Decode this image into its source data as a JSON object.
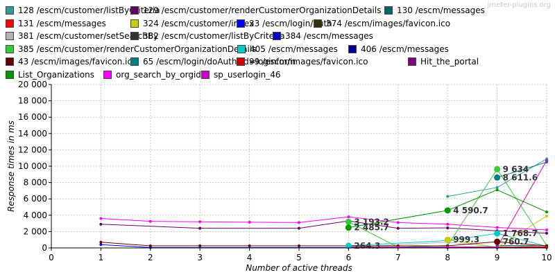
{
  "watermark": "jmeter-plugins.org",
  "chart_data": {
    "type": "line",
    "xlabel": "Number of active threads",
    "ylabel": "Response times in ms",
    "xlim": [
      0,
      10
    ],
    "ylim": [
      0,
      20000
    ],
    "x_ticks": [
      0,
      1,
      2,
      3,
      4,
      5,
      6,
      7,
      8,
      9,
      10
    ],
    "y_ticks": [
      0,
      2000,
      4000,
      6000,
      8000,
      10000,
      12000,
      14000,
      16000,
      18000,
      20000
    ],
    "x_tick_labels": [
      "0",
      "1",
      "2",
      "3",
      "4",
      "5",
      "6",
      "7",
      "8",
      "9",
      "10"
    ],
    "y_tick_labels": [
      "0",
      "2 000",
      "4 000",
      "6 000",
      "8 000",
      "10 000",
      "12 000",
      "14 000",
      "16 000",
      "18 000",
      "20 000"
    ],
    "grid": true,
    "legend_position": "top",
    "series": [
      {
        "name": "128 /escm/customer/listByCriteria",
        "color": "#339999",
        "points": [
          [
            8,
            6300
          ],
          [
            9,
            7400
          ],
          [
            10,
            10900
          ]
        ]
      },
      {
        "name": "129 /escm/customer/renderCustomerOrganizationDetails",
        "color": "#660066",
        "points": [
          [
            1,
            2900
          ],
          [
            3,
            2400
          ],
          [
            5,
            2400
          ],
          [
            6,
            3300
          ],
          [
            7,
            2400
          ],
          [
            8,
            2450
          ],
          [
            9,
            2100
          ],
          [
            10,
            1800
          ]
        ]
      },
      {
        "name": "130 /escm/messages",
        "color": "#006666",
        "points": [
          [
            9,
            300
          ],
          [
            10,
            300
          ]
        ]
      },
      {
        "name": "131 /escm/messages",
        "color": "#ff0000",
        "points": [
          [
            9,
            150
          ],
          [
            10,
            150
          ]
        ]
      },
      {
        "name": "324 /escm/customer/index",
        "color": "#cccc00",
        "points": [
          [
            8,
            999.3
          ],
          [
            9,
            100
          ],
          [
            10,
            3900
          ]
        ]
      },
      {
        "name": "33 /escm/login/auth",
        "color": "#0000ff",
        "points": [
          [
            1,
            400
          ],
          [
            2,
            50
          ],
          [
            6,
            50
          ],
          [
            8,
            50
          ],
          [
            9,
            50
          ],
          [
            10,
            50
          ]
        ]
      },
      {
        "name": "374 /escm/images/favicon.ico",
        "color": "#333300",
        "points": [
          [
            6,
            100
          ],
          [
            8,
            100
          ],
          [
            9,
            100
          ]
        ]
      },
      {
        "name": "381 /escm/customer/setSearchBy",
        "color": "#b3b3b3",
        "points": [
          [
            6,
            100
          ],
          [
            8,
            700
          ],
          [
            9,
            100
          ],
          [
            10,
            300
          ]
        ]
      },
      {
        "name": "382 /escm/customer/listByCriteria",
        "color": "#333333",
        "points": [
          [
            6,
            100
          ],
          [
            7,
            100
          ],
          [
            8,
            100
          ],
          [
            9,
            100
          ]
        ]
      },
      {
        "name": "384 /escm/messages",
        "color": "#0000cc",
        "points": [
          [
            6,
            50
          ],
          [
            8,
            50
          ],
          [
            9,
            50
          ]
        ]
      },
      {
        "name": "385 /escm/customer/renderCustomerOrganizationDetails",
        "color": "#33cc33",
        "points": [
          [
            6,
            3193.2
          ],
          [
            7,
            100
          ],
          [
            8,
            300
          ],
          [
            9,
            9634
          ],
          [
            10,
            300
          ]
        ]
      },
      {
        "name": "405 /escm/messages",
        "color": "#00cccc",
        "points": [
          [
            6,
            264.3
          ],
          [
            8,
            900
          ],
          [
            9,
            1768.7
          ],
          [
            10,
            200
          ]
        ]
      },
      {
        "name": "406 /escm/messages",
        "color": "#000099",
        "points": [
          [
            6,
            50
          ],
          [
            8,
            50
          ],
          [
            9,
            50
          ]
        ]
      },
      {
        "name": "43 /escm/images/favicon.ico",
        "color": "#660000",
        "points": [
          [
            1,
            700
          ],
          [
            2,
            250
          ],
          [
            3,
            250
          ],
          [
            4,
            250
          ],
          [
            5,
            250
          ],
          [
            6,
            250
          ],
          [
            7,
            250
          ],
          [
            8,
            250
          ],
          [
            9,
            760.7
          ],
          [
            10,
            250
          ]
        ]
      },
      {
        "name": "65 /escm/login/doAuth?id=loginform",
        "color": "#008080",
        "points": [
          [
            9,
            8611.6
          ],
          [
            10,
            10500
          ]
        ]
      },
      {
        "name": "99 /escm/images/favicon.ico",
        "color": "#cc0000",
        "points": [
          [
            8,
            100
          ],
          [
            9,
            100
          ],
          [
            10,
            100
          ]
        ]
      },
      {
        "name": "Hit_the_portal",
        "color": "#800080",
        "points": [
          [
            8,
            100
          ],
          [
            9,
            100
          ]
        ]
      },
      {
        "name": "List_Organizations",
        "color": "#009900",
        "points": [
          [
            6,
            2485.7
          ],
          [
            8,
            4590.7
          ],
          [
            9,
            7100
          ],
          [
            10,
            4400
          ]
        ]
      },
      {
        "name": "org_search_by_orgid",
        "color": "#ff00ff",
        "points": [
          [
            1,
            3600
          ],
          [
            2,
            3250
          ],
          [
            3,
            3200
          ],
          [
            4,
            3150
          ],
          [
            5,
            3100
          ],
          [
            6,
            3800
          ],
          [
            7,
            3100
          ],
          [
            8,
            2900
          ],
          [
            9,
            2500
          ],
          [
            10,
            2200
          ]
        ]
      },
      {
        "name": "sp_userlogin_46",
        "color": "#cc00cc",
        "points": [
          [
            6,
            100
          ],
          [
            7,
            100
          ],
          [
            8,
            100
          ],
          [
            9,
            100
          ],
          [
            10,
            10700
          ]
        ]
      }
    ],
    "data_labels": [
      {
        "text": "3 193.2",
        "x": 6,
        "y": 3193.2
      },
      {
        "text": "2 485.7",
        "x": 6,
        "y": 2485.7
      },
      {
        "text": "264.3",
        "x": 6,
        "y": 264.3
      },
      {
        "text": "4 590.7",
        "x": 8,
        "y": 4590.7
      },
      {
        "text": "999.3",
        "x": 8,
        "y": 999.3
      },
      {
        "text": "9 634",
        "x": 9,
        "y": 9634
      },
      {
        "text": "8 611.6",
        "x": 9,
        "y": 8611.6
      },
      {
        "text": "1 768.7",
        "x": 9,
        "y": 1768.7
      },
      {
        "text": "760.7",
        "x": 9,
        "y": 760.7
      }
    ]
  }
}
